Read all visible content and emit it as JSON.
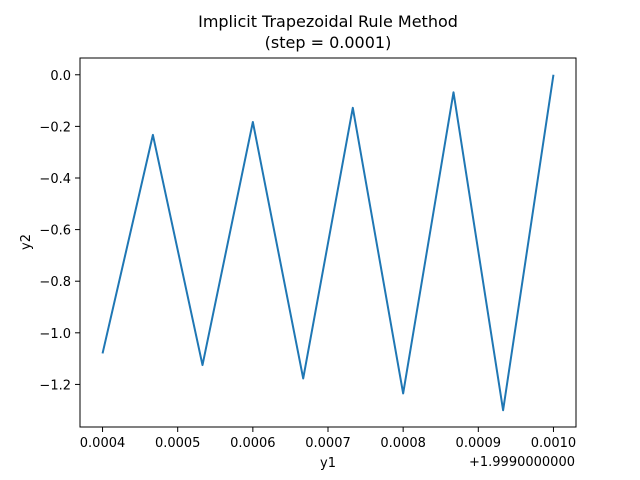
{
  "chart_data": {
    "type": "line",
    "title": "Implicit Trapezoidal Rule Method",
    "subtitle": "(step = 0.0001)",
    "xlabel": "y1",
    "ylabel": "y2",
    "x_offset_label": "+1.9990000000",
    "xlim": [
      0.00037,
      0.00103
    ],
    "ylim": [
      -1.365,
      0.065
    ],
    "x_ticks": [
      0.0004,
      0.0005,
      0.0006,
      0.0007,
      0.0008,
      0.0009,
      0.001
    ],
    "x_tick_labels": [
      "0.0004",
      "0.0005",
      "0.0006",
      "0.0007",
      "0.0008",
      "0.0009",
      "0.0010"
    ],
    "y_ticks": [
      0.0,
      -0.2,
      -0.4,
      -0.6,
      -0.8,
      -1.0,
      -1.2
    ],
    "y_tick_labels": [
      "0.0",
      "−0.2",
      "−0.4",
      "−0.6",
      "−0.8",
      "−1.0",
      "−1.2"
    ],
    "grid": false,
    "line_color": "#1f77b4",
    "series": [
      {
        "x": [
          0.0004,
          0.000467,
          0.000533,
          0.0006,
          0.000667,
          0.000733,
          0.0008,
          0.000867,
          0.000933,
          0.001
        ],
        "y": [
          -1.08,
          -0.233,
          -1.125,
          -0.183,
          -1.177,
          -0.128,
          -1.235,
          -0.068,
          -1.3,
          0.0
        ]
      }
    ]
  }
}
